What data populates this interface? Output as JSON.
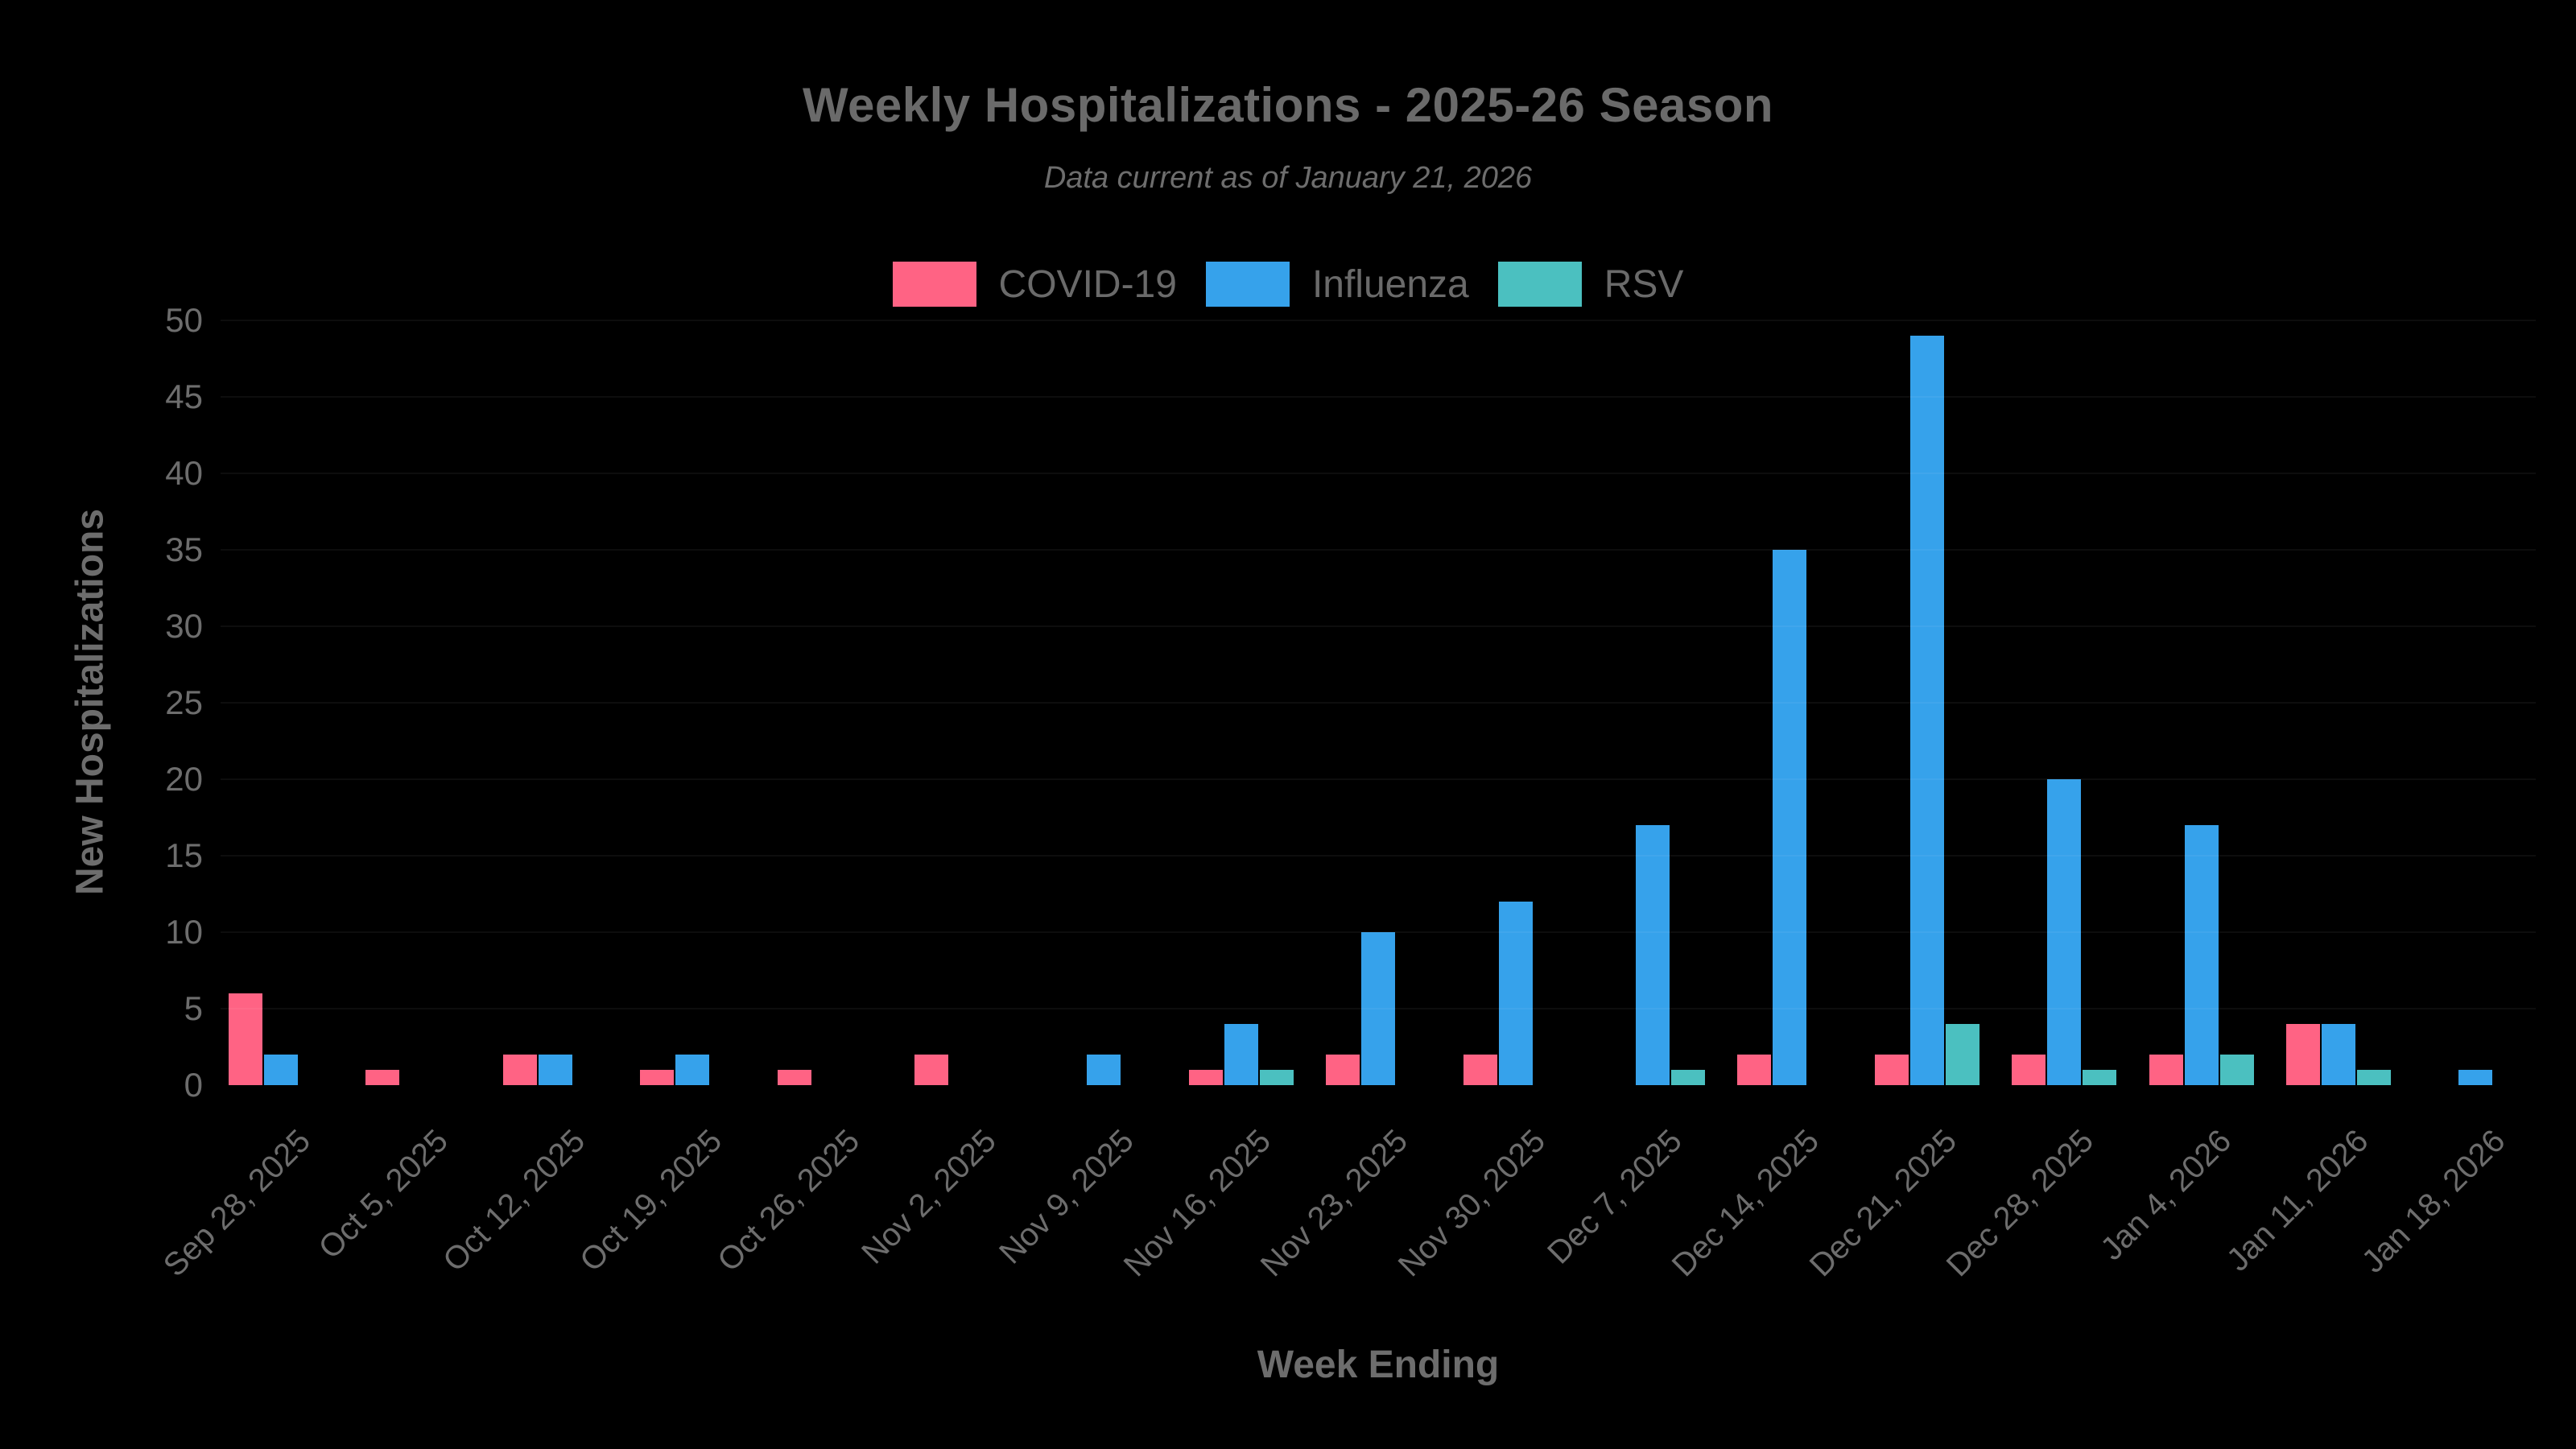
{
  "page": {
    "background_color": "#000000",
    "text_color": "#6d6d6d"
  },
  "chart_data": {
    "type": "bar",
    "title": "Weekly Hospitalizations - 2025-26 Season",
    "subtitle": "Data current as of January 21, 2026",
    "xlabel": "Week Ending",
    "ylabel": "New Hospitalizations",
    "ylim": [
      0,
      50
    ],
    "ytick_step": 5,
    "ytick_labels": [
      "0",
      "5",
      "10",
      "15",
      "20",
      "25",
      "30",
      "35",
      "40",
      "45",
      "50"
    ],
    "grid": "faint horizontal gridlines, visible only over bars",
    "legend_position": "top-center",
    "categories": [
      "Sep 28, 2025",
      "Oct 5, 2025",
      "Oct 12, 2025",
      "Oct 19, 2025",
      "Oct 26, 2025",
      "Nov 2, 2025",
      "Nov 9, 2025",
      "Nov 16, 2025",
      "Nov 23, 2025",
      "Nov 30, 2025",
      "Dec 7, 2025",
      "Dec 14, 2025",
      "Dec 21, 2025",
      "Dec 28, 2025",
      "Jan 4, 2026",
      "Jan 11, 2026",
      "Jan 18, 2026"
    ],
    "series": [
      {
        "name": "COVID-19",
        "color": "#FF6384",
        "values": [
          6,
          1,
          2,
          1,
          1,
          2,
          0,
          1,
          2,
          2,
          0,
          2,
          2,
          2,
          2,
          4,
          0
        ]
      },
      {
        "name": "Influenza",
        "color": "#36A2EB",
        "values": [
          2,
          0,
          2,
          2,
          0,
          0,
          2,
          4,
          10,
          12,
          17,
          35,
          49,
          20,
          17,
          4,
          1
        ]
      },
      {
        "name": "RSV",
        "color": "#4BC0C0",
        "values": [
          0,
          0,
          0,
          0,
          0,
          0,
          0,
          1,
          0,
          0,
          1,
          0,
          4,
          1,
          2,
          1,
          0
        ]
      }
    ]
  }
}
